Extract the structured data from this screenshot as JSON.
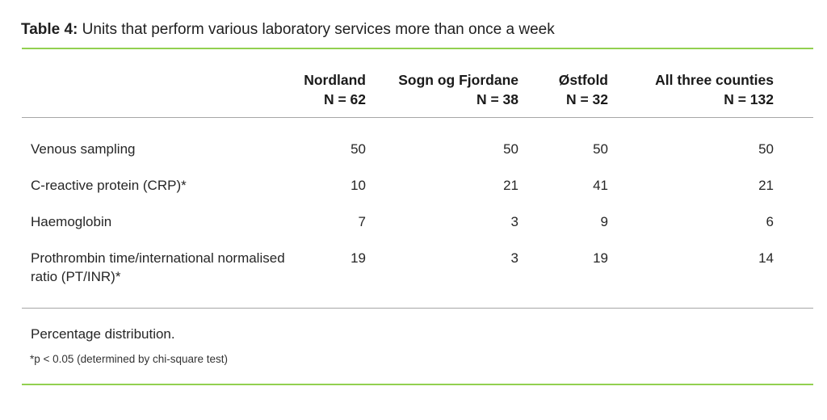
{
  "table": {
    "title_prefix": "Table 4:",
    "title_text": " Units that perform various laboratory services more than once a week",
    "columns": [
      {
        "name": "Nordland",
        "n": "N = 62"
      },
      {
        "name": "Sogn og Fjordane",
        "n": "N = 38"
      },
      {
        "name": "Østfold",
        "n": "N = 32"
      },
      {
        "name": "All three counties",
        "n": "N = 132"
      }
    ],
    "rows": [
      {
        "label": "Venous sampling",
        "values": [
          "50",
          "50",
          "50",
          "50"
        ]
      },
      {
        "label": "C-reactive protein (CRP)*",
        "values": [
          "10",
          "21",
          "41",
          "21"
        ]
      },
      {
        "label": "Haemoglobin",
        "values": [
          "7",
          "3",
          "9",
          "6"
        ]
      },
      {
        "label": "Prothrombin time/international normalised ratio (PT/INR)*",
        "values": [
          "19",
          "3",
          "19",
          "14"
        ]
      }
    ],
    "footer_note": "Percentage distribution.",
    "footnote": "*p < 0.05 (determined by chi-square test)"
  },
  "colors": {
    "accent_green": "#92d050",
    "line_gray": "#a6a6a6",
    "text": "#262626"
  }
}
